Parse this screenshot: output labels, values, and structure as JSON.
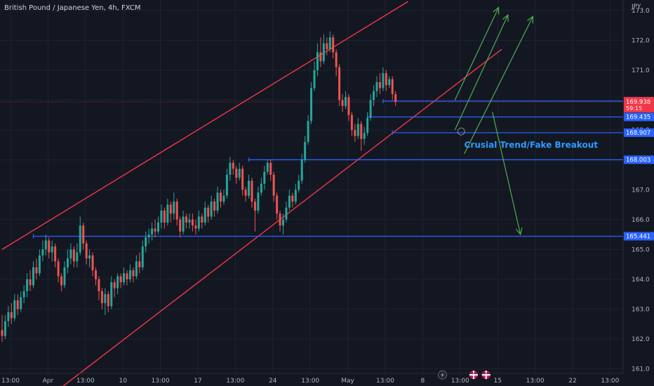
{
  "header": {
    "title": "British Pound / Japanese Yen, 4h, FXCM"
  },
  "axis": {
    "currency": "JPY"
  },
  "chart_data": {
    "type": "candlestick",
    "title": "British Pound / Japanese Yen, 4h, FXCM",
    "ylim": [
      160.85,
      173.35
    ],
    "y_ticks": [
      161.0,
      162.0,
      163.0,
      164.0,
      165.0,
      166.0,
      167.0,
      168.0,
      169.0,
      170.0,
      171.0,
      172.0,
      173.0
    ],
    "x_ticks": [
      "13:00",
      "Apr",
      "13:00",
      "10",
      "13:00",
      "17",
      "13:00",
      "24",
      "13:00",
      "May",
      "13:00",
      "8",
      "13:00",
      "15",
      "13:00",
      "22",
      "13:00"
    ],
    "grid": true,
    "price_levels": [
      {
        "value": 169.963,
        "label": "169.963",
        "color": "#2962ff"
      },
      {
        "value": 169.435,
        "label": "169.435",
        "color": "#2962ff"
      },
      {
        "value": 168.907,
        "label": "168.907",
        "color": "#2962ff"
      },
      {
        "value": 168.003,
        "label": "168.003",
        "color": "#2962ff"
      },
      {
        "value": 165.441,
        "label": "165.441",
        "color": "#2962ff"
      }
    ],
    "current_price": {
      "value": 169.938,
      "label": "169.938",
      "countdown": "59:15",
      "color": "#f23645"
    },
    "channel": {
      "color": "#f23645"
    },
    "annotation": "Crusial Trend/Fake Breakout",
    "colors": {
      "up": "#26a69a",
      "down": "#ef5350",
      "arrow": "#4caf50",
      "level": "#2962ff",
      "background": "#131722"
    },
    "candles": [
      [
        162.3,
        162.1,
        162.8,
        161.9
      ],
      [
        162.1,
        162.6,
        162.8,
        162.0
      ],
      [
        162.6,
        162.9,
        163.1,
        162.4
      ],
      [
        162.9,
        162.7,
        163.2,
        162.5
      ],
      [
        162.7,
        163.3,
        163.5,
        162.6
      ],
      [
        163.3,
        163.0,
        163.5,
        162.8
      ],
      [
        163.0,
        163.4,
        163.6,
        162.9
      ],
      [
        163.4,
        163.6,
        163.8,
        163.2
      ],
      [
        163.6,
        164.0,
        164.2,
        163.4
      ],
      [
        164.0,
        163.8,
        164.3,
        163.6
      ],
      [
        163.8,
        164.4,
        164.6,
        163.7
      ],
      [
        164.4,
        164.2,
        164.7,
        164.0
      ],
      [
        164.2,
        164.8,
        165.0,
        164.1
      ],
      [
        164.8,
        165.0,
        165.3,
        164.6
      ],
      [
        165.0,
        165.3,
        165.5,
        164.8
      ],
      [
        165.3,
        164.9,
        165.4,
        164.7
      ],
      [
        164.9,
        165.1,
        165.3,
        164.6
      ],
      [
        165.1,
        164.6,
        165.2,
        164.4
      ],
      [
        164.6,
        164.1,
        164.7,
        163.9
      ],
      [
        164.1,
        163.8,
        164.2,
        163.6
      ],
      [
        163.8,
        164.4,
        164.6,
        163.7
      ],
      [
        164.4,
        164.7,
        165.0,
        164.2
      ],
      [
        164.7,
        165.0,
        165.2,
        164.5
      ],
      [
        165.0,
        164.6,
        165.1,
        164.4
      ],
      [
        164.6,
        164.9,
        165.2,
        164.4
      ],
      [
        164.9,
        165.8,
        166.1,
        164.8
      ],
      [
        165.8,
        165.2,
        165.9,
        165.0
      ],
      [
        165.2,
        164.7,
        165.3,
        164.5
      ],
      [
        164.7,
        164.8,
        165.0,
        164.4
      ],
      [
        164.8,
        164.3,
        164.9,
        164.1
      ],
      [
        164.3,
        164.0,
        164.4,
        163.8
      ],
      [
        164.0,
        163.6,
        164.1,
        163.3
      ],
      [
        163.6,
        163.2,
        163.7,
        163.0
      ],
      [
        163.2,
        163.5,
        163.7,
        162.8
      ],
      [
        163.5,
        163.1,
        163.6,
        162.9
      ],
      [
        163.1,
        163.9,
        164.1,
        163.0
      ],
      [
        163.9,
        163.7,
        164.0,
        163.4
      ],
      [
        163.7,
        164.1,
        164.2,
        163.5
      ],
      [
        164.1,
        163.9,
        164.2,
        163.7
      ],
      [
        163.9,
        164.2,
        164.4,
        163.8
      ],
      [
        164.2,
        164.0,
        164.3,
        163.8
      ],
      [
        164.0,
        164.3,
        164.5,
        163.9
      ],
      [
        164.3,
        164.1,
        164.4,
        163.9
      ],
      [
        164.1,
        164.6,
        164.8,
        164.0
      ],
      [
        164.6,
        164.4,
        164.9,
        164.2
      ],
      [
        164.4,
        165.1,
        165.3,
        164.3
      ],
      [
        165.1,
        165.4,
        165.6,
        164.9
      ],
      [
        165.4,
        165.5,
        165.7,
        165.2
      ],
      [
        165.5,
        165.7,
        165.9,
        165.3
      ],
      [
        165.7,
        165.6,
        166.0,
        165.4
      ],
      [
        165.6,
        165.9,
        166.1,
        165.5
      ],
      [
        165.9,
        166.3,
        166.5,
        165.7
      ],
      [
        166.3,
        165.9,
        166.4,
        165.7
      ],
      [
        165.9,
        166.5,
        166.7,
        165.8
      ],
      [
        166.5,
        166.2,
        166.6,
        165.9
      ],
      [
        166.2,
        166.6,
        166.9,
        166.0
      ],
      [
        166.6,
        166.0,
        166.7,
        165.8
      ],
      [
        166.0,
        165.6,
        166.1,
        165.4
      ],
      [
        165.6,
        166.1,
        166.3,
        165.5
      ],
      [
        166.1,
        165.9,
        166.2,
        165.7
      ],
      [
        165.9,
        166.0,
        166.2,
        165.7
      ],
      [
        166.0,
        165.8,
        166.2,
        165.6
      ],
      [
        165.8,
        165.7,
        166.0,
        165.5
      ],
      [
        165.7,
        166.1,
        166.3,
        165.6
      ],
      [
        166.1,
        165.9,
        166.2,
        165.7
      ],
      [
        165.9,
        166.4,
        166.6,
        165.8
      ],
      [
        166.4,
        166.1,
        166.5,
        165.9
      ],
      [
        166.1,
        166.6,
        166.8,
        166.0
      ],
      [
        166.6,
        166.3,
        166.7,
        166.1
      ],
      [
        166.3,
        166.9,
        167.1,
        166.2
      ],
      [
        166.9,
        166.6,
        167.0,
        166.4
      ],
      [
        166.6,
        166.8,
        167.0,
        166.5
      ],
      [
        166.8,
        167.5,
        167.7,
        166.7
      ],
      [
        167.5,
        167.9,
        168.1,
        167.3
      ],
      [
        167.9,
        167.7,
        168.0,
        167.5
      ],
      [
        167.7,
        167.4,
        167.8,
        167.2
      ],
      [
        167.4,
        167.7,
        167.9,
        167.3
      ],
      [
        167.7,
        167.0,
        167.8,
        166.8
      ],
      [
        167.0,
        166.8,
        167.1,
        166.6
      ],
      [
        166.8,
        167.3,
        167.5,
        166.7
      ],
      [
        167.3,
        166.6,
        167.4,
        166.4
      ],
      [
        166.6,
        166.3,
        166.7,
        165.6
      ],
      [
        166.3,
        166.9,
        167.1,
        166.2
      ],
      [
        166.9,
        167.2,
        167.4,
        166.8
      ],
      [
        167.2,
        167.6,
        167.8,
        167.0
      ],
      [
        167.6,
        167.9,
        168.0,
        167.5
      ],
      [
        167.9,
        167.5,
        168.0,
        167.3
      ],
      [
        167.5,
        166.8,
        167.6,
        166.6
      ],
      [
        166.8,
        166.2,
        166.9,
        166.0
      ],
      [
        166.2,
        165.8,
        166.3,
        165.6
      ],
      [
        165.8,
        166.0,
        166.2,
        165.5
      ],
      [
        166.0,
        166.4,
        166.6,
        165.9
      ],
      [
        166.4,
        166.8,
        167.0,
        166.3
      ],
      [
        166.8,
        166.6,
        166.9,
        166.4
      ],
      [
        166.6,
        167.0,
        167.2,
        166.5
      ],
      [
        167.0,
        167.3,
        167.5,
        166.9
      ],
      [
        167.3,
        168.0,
        168.2,
        167.2
      ],
      [
        168.0,
        168.6,
        168.8,
        167.9
      ],
      [
        168.6,
        169.3,
        169.5,
        168.5
      ],
      [
        169.3,
        170.4,
        170.6,
        169.2
      ],
      [
        170.4,
        171.0,
        171.3,
        170.3
      ],
      [
        171.0,
        171.6,
        171.9,
        170.8
      ],
      [
        171.6,
        171.3,
        172.1,
        171.1
      ],
      [
        171.3,
        171.9,
        172.2,
        171.2
      ],
      [
        171.9,
        171.7,
        172.1,
        171.5
      ],
      [
        171.7,
        172.1,
        172.3,
        171.6
      ],
      [
        172.1,
        171.6,
        172.2,
        171.4
      ],
      [
        171.6,
        171.1,
        171.7,
        170.8
      ],
      [
        171.1,
        170.0,
        171.2,
        169.8
      ],
      [
        170.0,
        169.8,
        170.2,
        169.6
      ],
      [
        169.8,
        170.1,
        170.3,
        169.7
      ],
      [
        170.1,
        169.5,
        170.2,
        169.3
      ],
      [
        169.5,
        169.0,
        169.6,
        168.8
      ],
      [
        169.0,
        168.8,
        169.2,
        168.6
      ],
      [
        168.8,
        169.2,
        169.4,
        168.7
      ],
      [
        169.2,
        168.7,
        169.3,
        168.3
      ],
      [
        168.7,
        168.9,
        169.1,
        168.5
      ],
      [
        168.9,
        169.4,
        169.6,
        168.8
      ],
      [
        169.4,
        170.0,
        170.2,
        169.3
      ],
      [
        170.0,
        170.3,
        170.5,
        169.8
      ],
      [
        170.3,
        170.6,
        170.8,
        170.1
      ],
      [
        170.6,
        170.4,
        170.9,
        170.2
      ],
      [
        170.4,
        170.9,
        171.1,
        170.3
      ],
      [
        170.9,
        170.5,
        171.0,
        170.3
      ],
      [
        170.5,
        170.7,
        170.8,
        170.4
      ],
      [
        170.7,
        170.2,
        170.8,
        170.0
      ],
      [
        170.2,
        169.94,
        170.3,
        169.8
      ]
    ],
    "lines": {
      "channel_upper": [
        [
          0,
          165.0
        ],
        [
          130,
          173.3
        ]
      ],
      "channel_lower": [
        [
          18,
          160.3
        ],
        [
          160,
          171.7
        ]
      ],
      "level_extents": [
        [
          122,
          169.963
        ],
        [
          117,
          169.435
        ],
        [
          125,
          168.907
        ],
        [
          79,
          168.003
        ],
        [
          10,
          165.441
        ]
      ],
      "arrows": [
        {
          "from": [
            145,
            170.0
          ],
          "to": [
            159,
            173.1
          ]
        },
        {
          "from": [
            145,
            169.0
          ],
          "to": [
            162,
            172.85
          ]
        },
        {
          "from": [
            148,
            168.2
          ],
          "to": [
            170,
            172.8
          ]
        },
        {
          "from": [
            157,
            169.6
          ],
          "to": [
            166,
            165.5
          ]
        }
      ],
      "circle": [
        147,
        168.95
      ],
      "annotation_at": [
        148,
        168.5
      ],
      "marker_at": [
        141,
        160.8
      ],
      "flags_at": [
        [
          151,
          160.8
        ],
        [
          155,
          160.8
        ]
      ]
    }
  }
}
